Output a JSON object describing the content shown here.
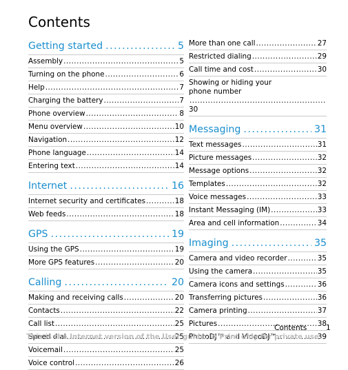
{
  "title": "Contents",
  "left_column": [
    {
      "type": "section",
      "title": "Getting started",
      "page": "5"
    },
    {
      "type": "entry",
      "title": "Assembly",
      "page": "5"
    },
    {
      "type": "entry",
      "title": "Turning on the phone",
      "page": "6"
    },
    {
      "type": "entry",
      "title": "Help",
      "page": "7"
    },
    {
      "type": "entry",
      "title": "Charging the battery",
      "page": "7"
    },
    {
      "type": "entry",
      "title": "Phone overview",
      "page": "8"
    },
    {
      "type": "entry",
      "title": "Menu overview",
      "page": "10"
    },
    {
      "type": "entry",
      "title": "Navigation",
      "page": "12"
    },
    {
      "type": "entry",
      "title": "Phone language",
      "page": "14"
    },
    {
      "type": "entry",
      "title": "Entering text",
      "page": "14"
    },
    {
      "type": "section",
      "title": "Internet",
      "page": "16"
    },
    {
      "type": "entry",
      "title": "Internet security and certificates",
      "page": "18"
    },
    {
      "type": "entry",
      "title": "Web feeds",
      "page": "18"
    },
    {
      "type": "section",
      "title": "GPS",
      "page": "19"
    },
    {
      "type": "entry",
      "title": "Using the GPS",
      "page": "19"
    },
    {
      "type": "entry",
      "title": "More GPS features",
      "page": "20"
    },
    {
      "type": "section",
      "title": "Calling",
      "page": "20"
    },
    {
      "type": "entry",
      "title": "Making and receiving calls",
      "page": "20"
    },
    {
      "type": "entry",
      "title": "Contacts",
      "page": "22"
    },
    {
      "type": "entry",
      "title": "Call list",
      "page": "25"
    },
    {
      "type": "entry",
      "title": "Speed dial",
      "page": "25"
    },
    {
      "type": "entry",
      "title": "Voicemail",
      "page": "25"
    },
    {
      "type": "entry",
      "title": "Voice control",
      "page": "26"
    }
  ],
  "right_column": [
    {
      "type": "entry",
      "title": "More than one call",
      "page": "27"
    },
    {
      "type": "entry",
      "title": "Restricted dialing",
      "page": "29"
    },
    {
      "type": "entry",
      "title": "Call time and cost",
      "page": "30"
    },
    {
      "type": "entry",
      "title": "Showing or hiding your",
      "title2": "phone number",
      "page": "30"
    },
    {
      "type": "section",
      "title": "Messaging",
      "page": "31"
    },
    {
      "type": "entry",
      "title": "Text messages",
      "page": "31"
    },
    {
      "type": "entry",
      "title": "Picture messages",
      "page": "32"
    },
    {
      "type": "entry",
      "title": "Message options",
      "page": "32"
    },
    {
      "type": "entry",
      "title": "Templates",
      "page": "32"
    },
    {
      "type": "entry",
      "title": "Voice messages",
      "page": "33"
    },
    {
      "type": "entry",
      "title": "Instant Messaging (IM)",
      "page": "33"
    },
    {
      "type": "entry",
      "title": "Area and cell information",
      "page": "34"
    },
    {
      "type": "section",
      "title": "Imaging",
      "page": "35"
    },
    {
      "type": "entry",
      "title": "Camera and video recorder",
      "page": "35"
    },
    {
      "type": "entry",
      "title": "Using the camera",
      "page": "35"
    },
    {
      "type": "entry",
      "title": "Camera icons and settings",
      "page": "36"
    },
    {
      "type": "entry",
      "title": "Transferring pictures",
      "page": "36"
    },
    {
      "type": "entry",
      "title": "Camera printing",
      "page": "37"
    },
    {
      "type": "entry",
      "title": "Pictures",
      "page": "38"
    },
    {
      "type": "entry",
      "title": "PhotoDJ™ and VideoDJ™",
      "page": "39"
    }
  ],
  "footer": {
    "label": "Contents",
    "page": "1",
    "watermark": "This is the Internet version of the User guide. © Print only for private use."
  },
  "colors": {
    "section": "#1a8fce",
    "watermark": "#bdbdbd",
    "rule": "#c9c9c9"
  }
}
